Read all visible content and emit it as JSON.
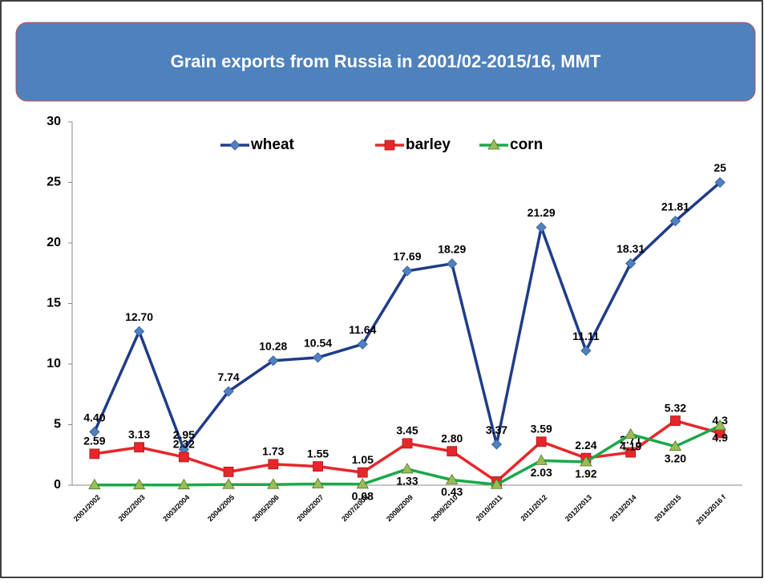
{
  "chart_data": {
    "type": "line",
    "title": "Grain exports from Russia  in 2001/02-2015/16, MMT",
    "categories": [
      "2001/2002",
      "2002/2003",
      "2003/2004",
      "2004/2005",
      "2005/2006",
      "2006/2007",
      "2007/2008",
      "2008/2009",
      "2009/2010",
      "2010/2011",
      "2011/2012",
      "2012/2013",
      "2013/2014",
      "2014/2015",
      "2015/2016 f"
    ],
    "series": [
      {
        "name": "wheat",
        "color": "#1f3c88",
        "marker": "diamond",
        "marker_color": "#4f81bd",
        "values": [
          4.4,
          12.7,
          2.95,
          7.74,
          10.28,
          10.54,
          11.64,
          17.69,
          18.29,
          3.37,
          21.29,
          11.11,
          18.31,
          21.81,
          25
        ],
        "value_labels": [
          "4.40",
          "12.70",
          "2.95",
          "7.74",
          "10.28",
          "10.54",
          "11.64",
          "17.69",
          "18.29",
          "3.37",
          "21.29",
          "11.11",
          "18.31",
          "21.81",
          "25"
        ]
      },
      {
        "name": "barley",
        "color": "#e8262a",
        "marker": "square",
        "marker_color": "#e8262a",
        "values": [
          2.59,
          3.13,
          2.32,
          1.1,
          1.73,
          1.55,
          1.05,
          3.45,
          2.8,
          0.3,
          3.59,
          2.24,
          2.71,
          5.32,
          4.3
        ],
        "value_labels": [
          "2.59",
          "3.13",
          "2.32",
          null,
          "1.73",
          "1.55",
          "1.05",
          "3.45",
          "2.80",
          null,
          "3.59",
          "2.24",
          "2.71",
          "5.32",
          "4.3"
        ]
      },
      {
        "name": "corn",
        "color": "#1aa84a",
        "marker": "triangle",
        "marker_color": "#9bbb59",
        "values": [
          0.02,
          0.02,
          0.02,
          0.05,
          0.05,
          0.1,
          0.08,
          1.33,
          0.43,
          0.05,
          2.03,
          1.92,
          4.19,
          3.2,
          4.9
        ],
        "value_labels": [
          null,
          null,
          null,
          null,
          null,
          null,
          "0.08",
          "1.33",
          "0.43",
          null,
          "2.03",
          "1.92",
          "4.19",
          "3.20",
          "4.9"
        ]
      }
    ],
    "ylim": [
      0,
      30
    ],
    "yticks": [
      0,
      5,
      10,
      15,
      20,
      25,
      30
    ],
    "grid": false,
    "legend": "top"
  }
}
